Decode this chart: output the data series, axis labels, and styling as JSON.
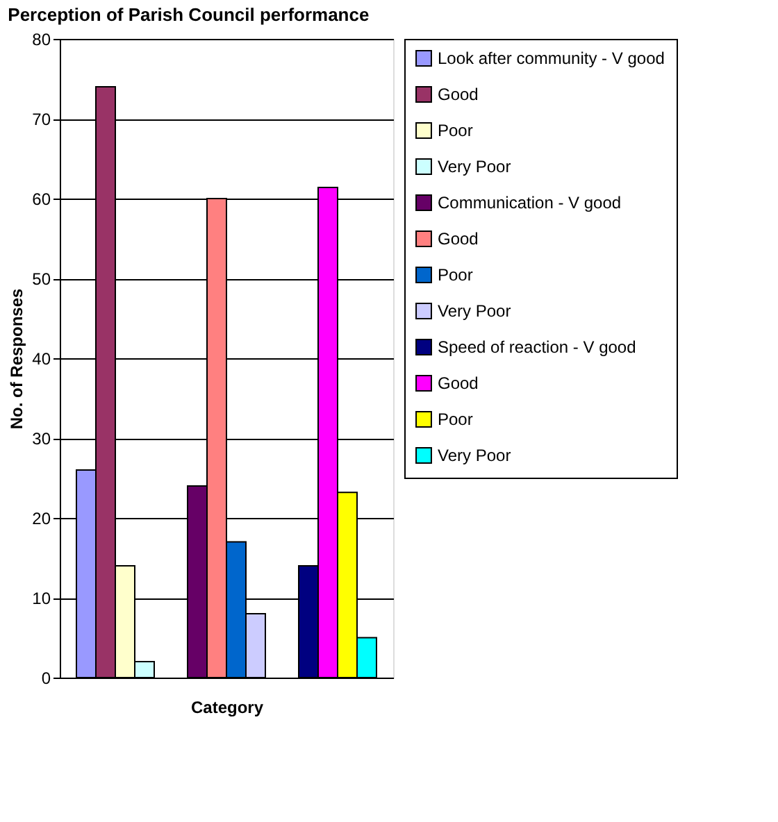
{
  "chart_data": {
    "type": "bar",
    "title": "Perception of Parish Council performance",
    "xlabel": "Category",
    "ylabel": "No. of Responses",
    "categories": [
      null,
      null,
      null
    ],
    "series": [
      {
        "name": "Look after community - V good",
        "color": "#9999ff",
        "values": [
          26,
          null,
          null
        ]
      },
      {
        "name": "Good",
        "color": "#993366",
        "values": [
          74,
          null,
          null
        ]
      },
      {
        "name": "Poor",
        "color": "#ffffcc",
        "values": [
          14,
          null,
          null
        ]
      },
      {
        "name": "Very Poor",
        "color": "#ccffff",
        "values": [
          2,
          null,
          null
        ]
      },
      {
        "name": "Communication - V good",
        "color": "#660066",
        "values": [
          null,
          24,
          null
        ]
      },
      {
        "name": "Good",
        "color": "#ff8080",
        "values": [
          null,
          60,
          null
        ]
      },
      {
        "name": "Poor",
        "color": "#0066cc",
        "values": [
          null,
          17,
          null
        ]
      },
      {
        "name": "Very Poor",
        "color": "#ccccff",
        "values": [
          null,
          8,
          null
        ]
      },
      {
        "name": "Speed of reaction - V good",
        "color": "#000080",
        "values": [
          null,
          null,
          14
        ]
      },
      {
        "name": "Good",
        "color": "#ff00ff",
        "values": [
          null,
          null,
          61.4
        ]
      },
      {
        "name": "Poor",
        "color": "#ffff00",
        "values": [
          null,
          null,
          23.2
        ]
      },
      {
        "name": "Very Poor",
        "color": "#00ffff",
        "values": [
          null,
          null,
          5
        ]
      }
    ],
    "ylim": [
      0,
      80
    ],
    "yticks": [
      0,
      10,
      20,
      30,
      40,
      50,
      60,
      70,
      80
    ],
    "grid": "y",
    "legend": "right"
  }
}
